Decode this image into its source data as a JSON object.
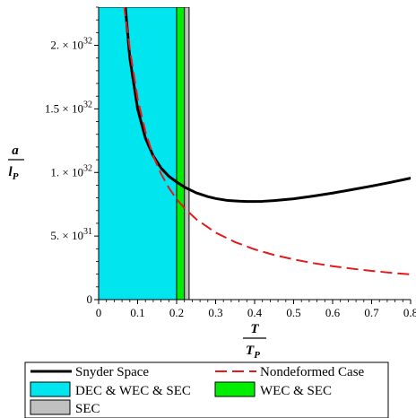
{
  "chart_data": {
    "type": "line",
    "xlabel": {
      "num": "T",
      "den": "T",
      "den_sub": "P"
    },
    "ylabel": {
      "num": "a",
      "den": "l",
      "den_sub": "P"
    },
    "xlim": [
      0,
      0.8
    ],
    "ylim": [
      0,
      2.3e+32
    ],
    "x_ticks": [
      {
        "value": 0,
        "label": "0"
      },
      {
        "value": 0.1,
        "label": "0.1"
      },
      {
        "value": 0.2,
        "label": "0.2"
      },
      {
        "value": 0.3,
        "label": "0.3"
      },
      {
        "value": 0.4,
        "label": "0.4"
      },
      {
        "value": 0.5,
        "label": "0.5"
      },
      {
        "value": 0.6,
        "label": "0.6"
      },
      {
        "value": 0.7,
        "label": "0.7"
      },
      {
        "value": 0.8,
        "label": "0.8"
      }
    ],
    "y_ticks": [
      {
        "value": 0,
        "label": "0",
        "mantissa": "",
        "exponent": ""
      },
      {
        "value": 5e+31,
        "label": "5. × 10",
        "mantissa": "5. × 10",
        "exponent": "31"
      },
      {
        "value": 1e+32,
        "label": "1. × 10",
        "mantissa": "1. × 10",
        "exponent": "32"
      },
      {
        "value": 1.5e+32,
        "label": "1.5 × 10",
        "mantissa": "1.5 × 10",
        "exponent": "32"
      },
      {
        "value": 2e+32,
        "label": "2. × 10",
        "mantissa": "2. × 10",
        "exponent": "32"
      }
    ],
    "regions": [
      {
        "name": "DEC & WEC & SEC",
        "x_start": 0.0,
        "x_end": 0.2,
        "color": "#00e5ee"
      },
      {
        "name": "WEC & SEC",
        "x_start": 0.2,
        "x_end": 0.22,
        "color": "#00ee00"
      },
      {
        "name": "SEC",
        "x_start": 0.22,
        "x_end": 0.232,
        "color": "#c0c0c0"
      }
    ],
    "series": [
      {
        "name": "Snyder Space",
        "color": "#000000",
        "style": "solid",
        "x": [
          0.068,
          0.08,
          0.1,
          0.12,
          0.14,
          0.16,
          0.18,
          0.2,
          0.22,
          0.25,
          0.28,
          0.3,
          0.33,
          0.36,
          0.38,
          0.4,
          0.42,
          0.45,
          0.5,
          0.55,
          0.6,
          0.65,
          0.7,
          0.75,
          0.8
        ],
        "y": [
          2.32e+32,
          1.9e+32,
          1.5e+32,
          1.27e+32,
          1.13e+32,
          1.035e+32,
          9.7e+31,
          9.25e+31,
          8.85e+31,
          8.4e+31,
          8.1e+31,
          7.95e+31,
          7.8e+31,
          7.74e+31,
          7.72e+31,
          7.72e+31,
          7.73e+31,
          7.79e+31,
          7.93e+31,
          8.14e+31,
          8.38e+31,
          8.65e+31,
          8.93e+31,
          9.23e+31,
          9.55e+31
        ]
      },
      {
        "name": "Nondeformed Case",
        "color": "#e31a1c",
        "style": "dashed",
        "x": [
          0.065,
          0.08,
          0.1,
          0.12,
          0.14,
          0.16,
          0.18,
          0.2,
          0.22,
          0.25,
          0.3,
          0.35,
          0.4,
          0.45,
          0.5,
          0.55,
          0.6,
          0.65,
          0.7,
          0.75,
          0.8
        ],
        "y": [
          2.32e+32,
          1.97e+32,
          1.58e+32,
          1.32e+32,
          1.13e+32,
          9.9e+31,
          8.8e+31,
          7.9e+31,
          7.2e+31,
          6.33e+31,
          5.27e+31,
          4.52e+31,
          3.95e+31,
          3.51e+31,
          3.16e+31,
          2.87e+31,
          2.63e+31,
          2.43e+31,
          2.26e+31,
          2.11e+31,
          1.98e+31
        ]
      }
    ],
    "legend": {
      "placement": "bottom",
      "items": [
        {
          "label": "Snyder Space",
          "kind": "line",
          "color": "#000000",
          "style": "solid"
        },
        {
          "label": "Nondeformed Case",
          "kind": "line",
          "color": "#e31a1c",
          "style": "dashed"
        },
        {
          "label": "DEC & WEC & SEC",
          "kind": "box",
          "color": "#00e5ee"
        },
        {
          "label": "WEC & SEC",
          "kind": "box",
          "color": "#00ee00"
        },
        {
          "label": "SEC",
          "kind": "box",
          "color": "#c0c0c0"
        }
      ]
    }
  }
}
